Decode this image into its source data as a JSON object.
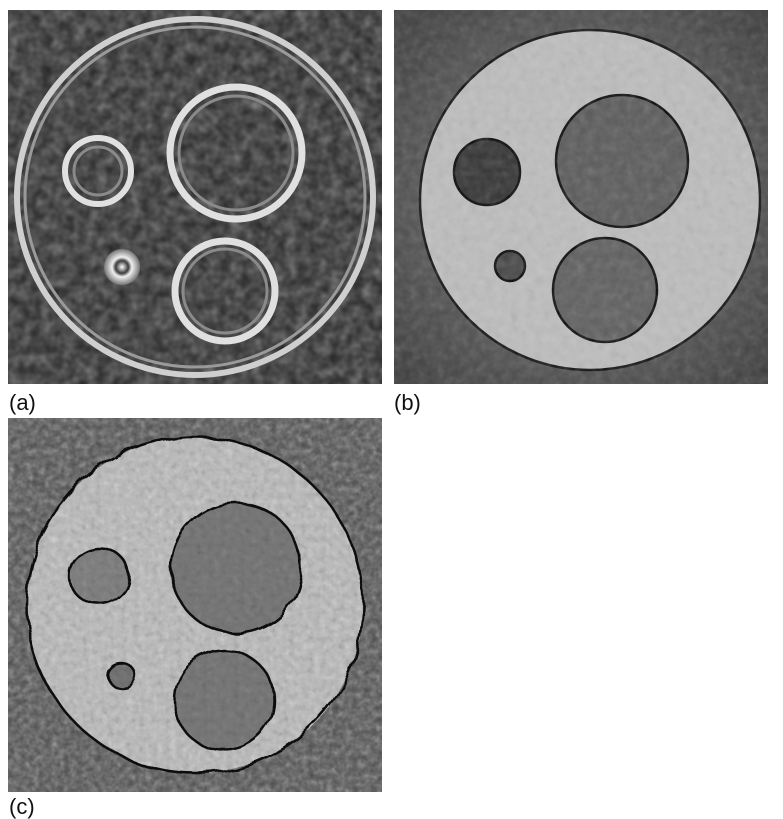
{
  "figure": {
    "panels": [
      {
        "id": "a",
        "label": "(a)",
        "description_icon": "edge-ring-reconstruction"
      },
      {
        "id": "b",
        "label": "(b)",
        "description_icon": "smooth-region-reconstruction"
      },
      {
        "id": "c",
        "label": "(c)",
        "description_icon": "noisy-region-reconstruction"
      }
    ]
  },
  "colors": {
    "dark": "#1a1a1a",
    "mid": "#5e5e5e",
    "light": "#c8c8c8",
    "ring": "#d9d9d9",
    "contour": "#0a0a0a"
  }
}
